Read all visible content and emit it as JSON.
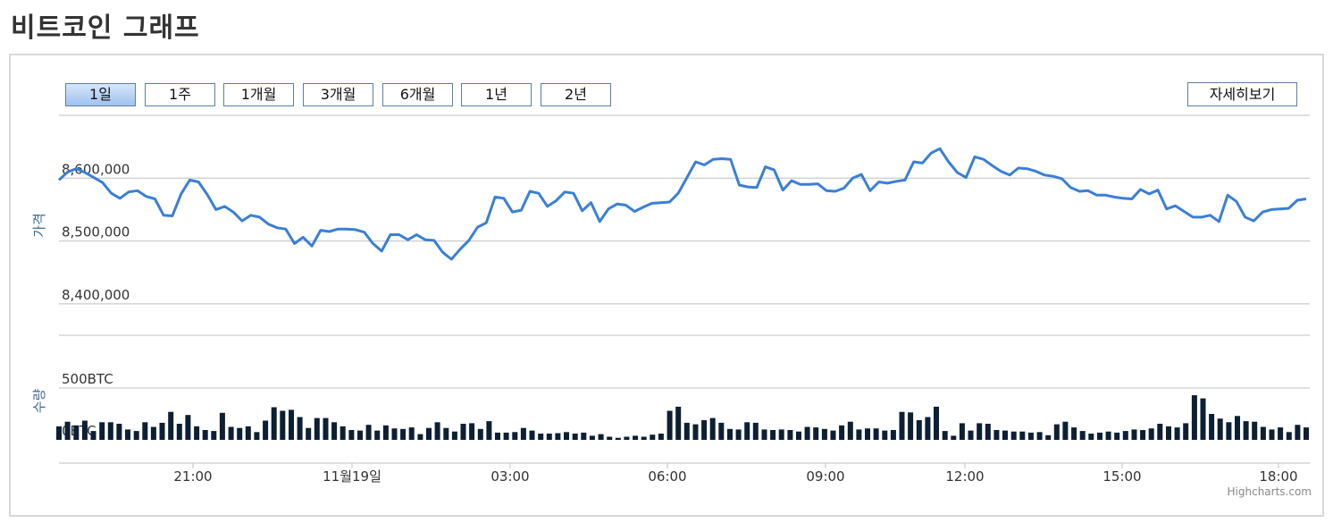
{
  "page": {
    "title": "비트코인 그래프"
  },
  "range_buttons": [
    {
      "label": "1일",
      "active": true
    },
    {
      "label": "1주",
      "active": false
    },
    {
      "label": "1개월",
      "active": false
    },
    {
      "label": "3개월",
      "active": false
    },
    {
      "label": "6개월",
      "active": false
    },
    {
      "label": "1년",
      "active": false
    },
    {
      "label": "2년",
      "active": false
    }
  ],
  "detail_button": "자세히보기",
  "credit": "Highcharts.com",
  "colors": {
    "line": "#3a7fd5",
    "bars": "#0d1f33",
    "axis_label": "#3b6a93"
  },
  "chart_data": [
    {
      "type": "line",
      "ylabel": "가격",
      "ylim": [
        8350000,
        8700000
      ],
      "yticks": [
        "8,600,000",
        "8,500,000",
        "8,400,000"
      ],
      "grid": true,
      "series": [
        {
          "values": [
            8597000,
            8610000,
            8615000,
            8609000,
            8601000,
            8593000,
            8576000,
            8568000,
            8578000,
            8580000,
            8571000,
            8567000,
            8541000,
            8540000,
            8575000,
            8597000,
            8594000,
            8574000,
            8550000,
            8555000,
            8546000,
            8532000,
            8541000,
            8538000,
            8527000,
            8521000,
            8519000,
            8496000,
            8506000,
            8492000,
            8517000,
            8515000,
            8519000,
            8519000,
            8518000,
            8514000,
            8496000,
            8484000,
            8510000,
            8510000,
            8502000,
            8510000,
            8502000,
            8501000,
            8482000,
            8471000,
            8487000,
            8501000,
            8522000,
            8529000,
            8570000,
            8568000,
            8546000,
            8549000,
            8579000,
            8576000,
            8555000,
            8564000,
            8578000,
            8576000,
            8548000,
            8561000,
            8531000,
            8551000,
            8559000,
            8557000,
            8547000,
            8554000,
            8560000,
            8561000,
            8562000,
            8576000,
            8601000,
            8626000,
            8621000,
            8630000,
            8631000,
            8630000,
            8589000,
            8586000,
            8585000,
            8618000,
            8613000,
            8581000,
            8596000,
            8590000,
            8590000,
            8591000,
            8580000,
            8579000,
            8584000,
            8600000,
            8606000,
            8580000,
            8594000,
            8592000,
            8595000,
            8597000,
            8626000,
            8624000,
            8640000,
            8647000,
            8626000,
            8609000,
            8601000,
            8634000,
            8630000,
            8620000,
            8611000,
            8605000,
            8616000,
            8615000,
            8611000,
            8605000,
            8603000,
            8599000,
            8585000,
            8579000,
            8580000,
            8573000,
            8573000,
            8570000,
            8568000,
            8567000,
            8582000,
            8575000,
            8581000,
            8551000,
            8556000,
            8547000,
            8538000,
            8538000,
            8541000,
            8531000,
            8573000,
            8563000,
            8538000,
            8532000,
            8546000,
            8550000,
            8551000,
            8552000,
            8565000,
            8567000
          ]
        }
      ]
    },
    {
      "type": "bar",
      "ylabel": "수량",
      "ylim": [
        0,
        500
      ],
      "yticks": [
        "500BTC",
        "0BTC"
      ],
      "grid": true,
      "x_labels": [
        "21:00",
        "11월19일",
        "03:00",
        "06:00",
        "09:00",
        "12:00",
        "15:00",
        "18:00"
      ],
      "series": [
        {
          "values": [
            130,
            175,
            140,
            185,
            85,
            170,
            170,
            155,
            100,
            85,
            170,
            125,
            165,
            270,
            155,
            240,
            130,
            95,
            85,
            260,
            125,
            115,
            130,
            75,
            185,
            315,
            280,
            290,
            220,
            115,
            210,
            210,
            170,
            130,
            95,
            90,
            145,
            90,
            140,
            110,
            105,
            120,
            55,
            115,
            170,
            115,
            80,
            155,
            160,
            105,
            180,
            70,
            70,
            75,
            115,
            90,
            60,
            60,
            65,
            75,
            60,
            70,
            40,
            55,
            30,
            20,
            30,
            40,
            30,
            50,
            60,
            280,
            320,
            165,
            150,
            190,
            210,
            165,
            105,
            100,
            170,
            165,
            100,
            95,
            100,
            95,
            80,
            125,
            120,
            105,
            90,
            140,
            175,
            100,
            110,
            110,
            90,
            95,
            270,
            265,
            190,
            220,
            320,
            85,
            40,
            160,
            90,
            160,
            155,
            95,
            90,
            80,
            80,
            70,
            75,
            45,
            150,
            175,
            120,
            85,
            60,
            70,
            80,
            70,
            85,
            100,
            95,
            110,
            155,
            130,
            120,
            160,
            430,
            400,
            250,
            205,
            170,
            230,
            180,
            175,
            125,
            100,
            120,
            75,
            145,
            120
          ]
        }
      ]
    }
  ]
}
